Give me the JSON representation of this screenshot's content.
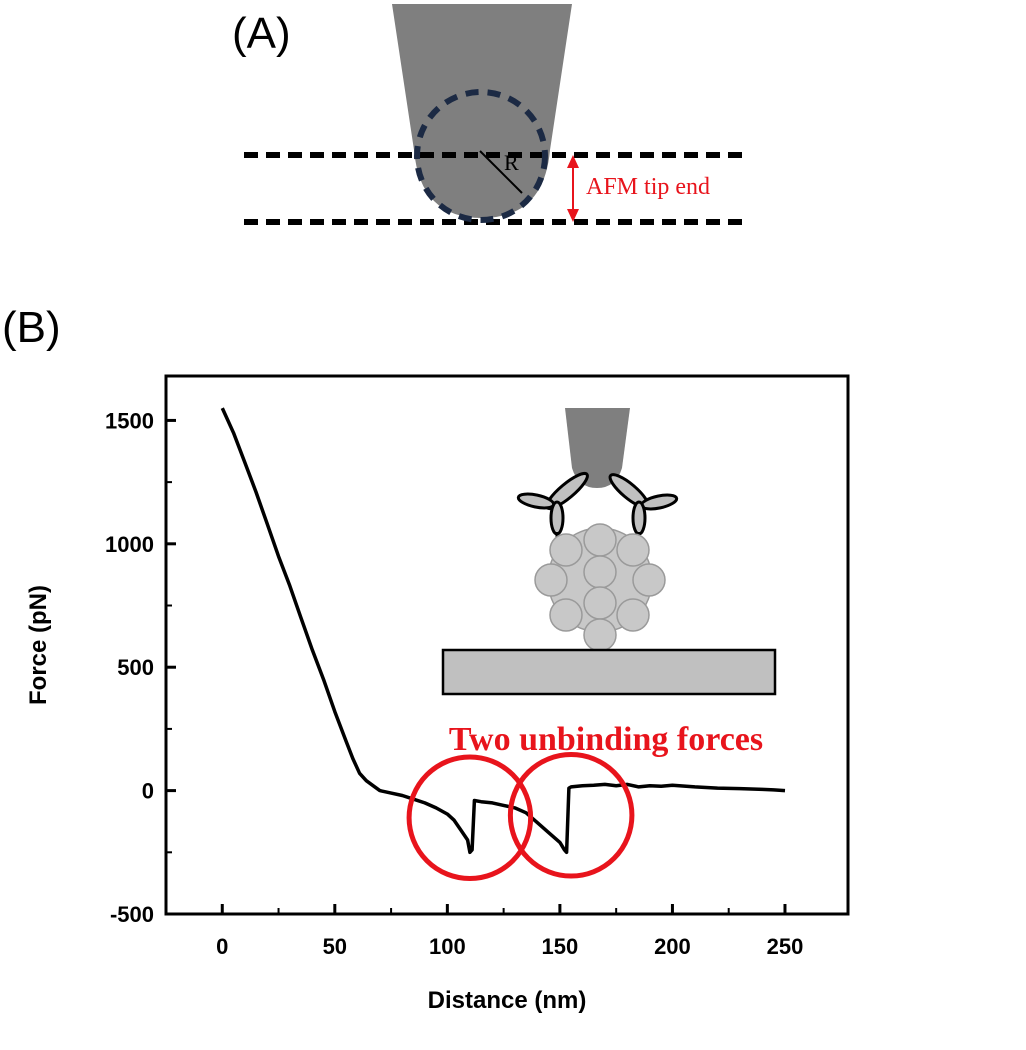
{
  "panels": {
    "a_label": "(A)",
    "b_label": "(B)"
  },
  "schematic": {
    "radius_label": "R",
    "tip_end_label": "AFM tip end"
  },
  "annotation": {
    "text": "Two unbinding forces"
  },
  "colors": {
    "curve": "#000000",
    "highlight": "#e8141c",
    "tip": "#7f7f7f",
    "particle": "#c8c8c8",
    "substrate": "#c0c0c0",
    "dashed_circle": "#1c2a44"
  },
  "chart_data": {
    "type": "line",
    "title": "",
    "xlabel": "Distance (nm)",
    "ylabel": "Force (pN)",
    "xlim": [
      -25,
      278
    ],
    "ylim": [
      -500,
      1680
    ],
    "xticks": [
      0,
      50,
      100,
      150,
      200,
      250
    ],
    "yticks": [
      -500,
      0,
      500,
      1000,
      1500
    ],
    "grid": false,
    "series": [
      {
        "x": [
          0,
          5,
          10,
          15,
          20,
          25,
          30,
          35,
          40,
          45,
          50,
          55,
          58,
          61,
          64,
          67,
          70,
          75,
          80,
          85,
          90,
          95,
          100,
          103,
          106,
          109,
          110,
          111,
          112,
          115,
          120,
          125,
          130,
          135,
          140,
          145,
          150,
          152,
          153,
          154,
          155,
          160,
          165,
          170,
          175,
          180,
          185,
          190,
          195,
          200,
          210,
          220,
          230,
          240,
          245,
          250
        ],
        "y": [
          1550,
          1450,
          1330,
          1210,
          1080,
          950,
          830,
          700,
          570,
          450,
          320,
          200,
          130,
          70,
          40,
          20,
          0,
          -10,
          -20,
          -35,
          -50,
          -70,
          -95,
          -120,
          -160,
          -200,
          -250,
          -240,
          -40,
          -45,
          -50,
          -60,
          -70,
          -90,
          -130,
          -170,
          -210,
          -240,
          -250,
          10,
          15,
          20,
          22,
          25,
          20,
          25,
          15,
          20,
          18,
          22,
          15,
          10,
          8,
          5,
          3,
          0
        ]
      }
    ],
    "circles": [
      {
        "cx": 110,
        "cy": -110,
        "r": 27
      },
      {
        "cx": 155,
        "cy": -100,
        "r": 27
      }
    ]
  }
}
